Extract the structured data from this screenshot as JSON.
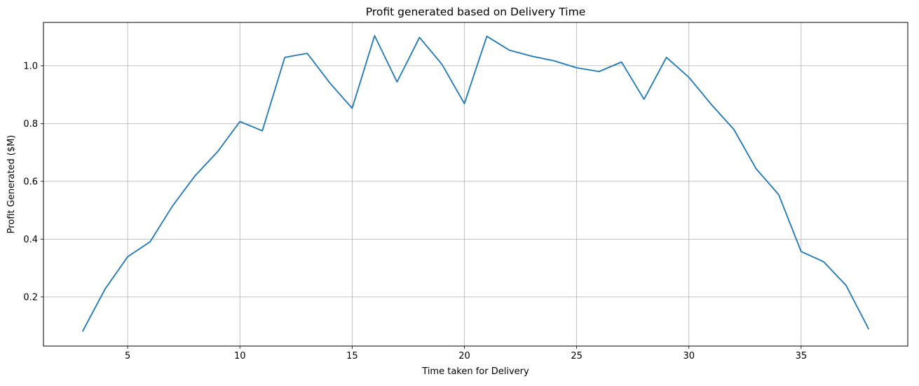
{
  "chart_data": {
    "type": "line",
    "title": "Profit generated based on Delivery Time",
    "xlabel": "Time taken for Delivery",
    "ylabel": "Profit Generated ($M)",
    "xlim": [
      1.25,
      39.75
    ],
    "ylim": [
      0.03,
      1.15
    ],
    "xticks": [
      5,
      10,
      15,
      20,
      25,
      30,
      35
    ],
    "xtick_labels": [
      "5",
      "10",
      "15",
      "20",
      "25",
      "30",
      "35"
    ],
    "yticks": [
      0.2,
      0.4,
      0.6,
      0.8,
      1.0
    ],
    "ytick_labels": [
      "0.2",
      "0.4",
      "0.6",
      "0.8",
      "1.0"
    ],
    "grid": true,
    "series": [
      {
        "color": "#1f77b4",
        "x": [
          3,
          4,
          5,
          6,
          7,
          8,
          9,
          10,
          11,
          12,
          13,
          14,
          15,
          16,
          17,
          18,
          19,
          20,
          21,
          22,
          23,
          24,
          25,
          26,
          27,
          28,
          29,
          30,
          31,
          32,
          33,
          34,
          35,
          36,
          37,
          38
        ],
        "y": [
          0.082,
          0.228,
          0.339,
          0.391,
          0.515,
          0.619,
          0.702,
          0.807,
          0.775,
          1.029,
          1.043,
          0.941,
          0.853,
          1.104,
          0.944,
          1.098,
          1.005,
          0.869,
          1.102,
          1.054,
          1.033,
          1.017,
          0.993,
          0.98,
          1.013,
          0.884,
          1.029,
          0.96,
          0.866,
          0.78,
          0.643,
          0.554,
          0.357,
          0.322,
          0.24,
          0.09
        ]
      }
    ]
  }
}
